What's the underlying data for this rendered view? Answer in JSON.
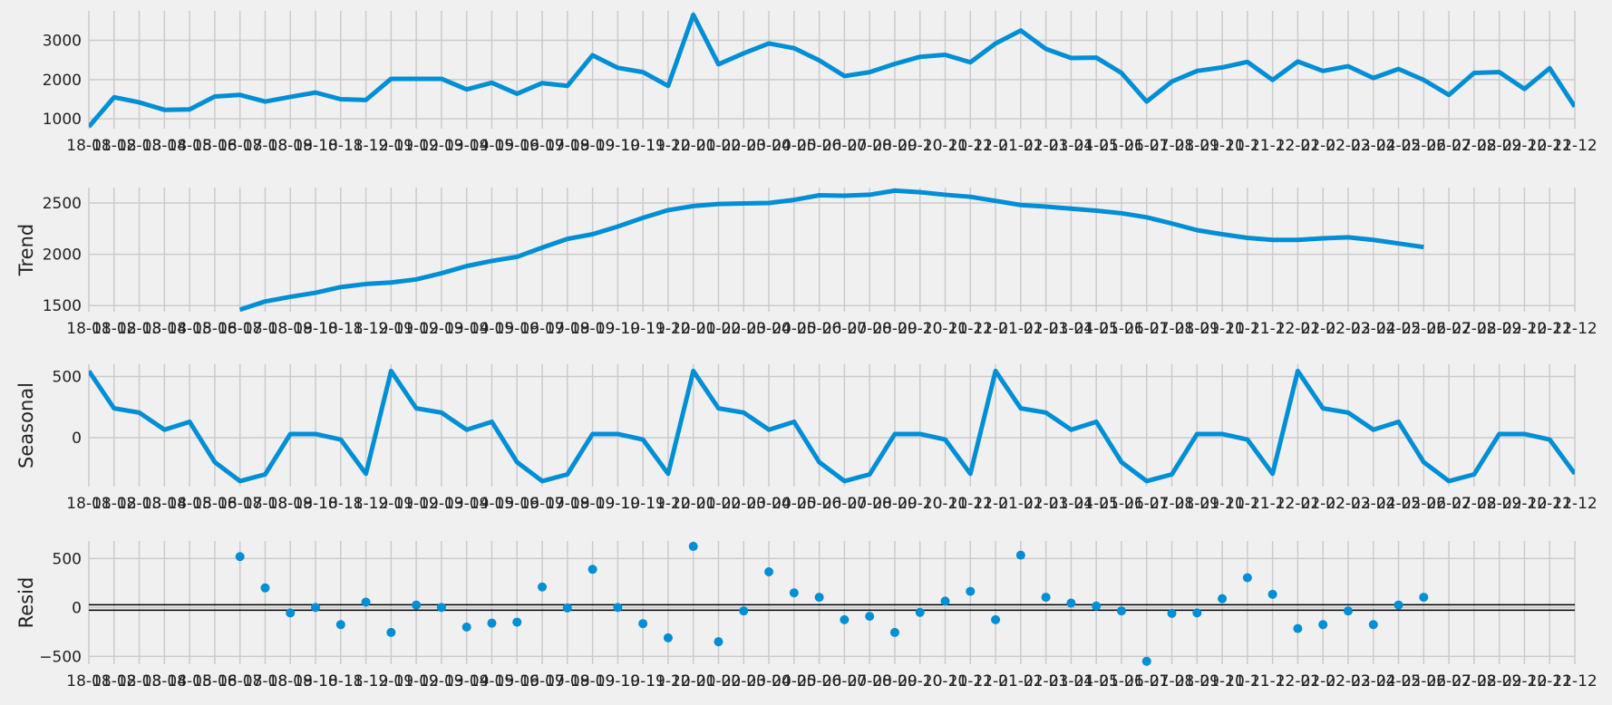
{
  "chart_data": [
    {
      "type": "line",
      "ylabel": "",
      "ylim": [
        750,
        3750
      ],
      "yticks": [
        1000,
        2000,
        3000
      ],
      "grid": true,
      "x_tick_labels": [
        "18-01",
        "18-02",
        "18-03",
        "18-04",
        "18-05",
        "18-06",
        "18-07",
        "18-08",
        "18-09",
        "18-10",
        "18-11",
        "18-12",
        "19-01",
        "19-02",
        "19-03",
        "19-04",
        "19-05",
        "19-06",
        "19-07",
        "19-08",
        "19-09",
        "19-10",
        "19-11",
        "19-12",
        "20-01",
        "20-02",
        "20-03",
        "20-04",
        "20-05",
        "20-06",
        "20-07",
        "20-08",
        "20-09",
        "20-10",
        "20-11",
        "20-12",
        "21-01",
        "21-02",
        "21-03",
        "21-04",
        "21-05",
        "21-06",
        "21-07",
        "21-08",
        "21-09",
        "21-10",
        "21-11",
        "21-12",
        "22-01",
        "22-02",
        "22-03",
        "22-04",
        "22-05",
        "22-06",
        "22-07",
        "22-08",
        "22-09",
        "22-10",
        "22-11",
        "22-12"
      ],
      "values": [
        800,
        1550,
        1420,
        1230,
        1240,
        1570,
        1610,
        1440,
        1560,
        1670,
        1500,
        1480,
        2020,
        2020,
        2020,
        1750,
        1920,
        1640,
        1910,
        1840,
        2620,
        2300,
        2190,
        1840,
        3650,
        2390,
        2670,
        2920,
        2800,
        2490,
        2090,
        2190,
        2400,
        2580,
        2630,
        2440,
        2920,
        3250,
        2780,
        2550,
        2560,
        2170,
        1440,
        1950,
        2220,
        2310,
        2450,
        1990,
        2460,
        2220,
        2340,
        2040,
        2270,
        1990,
        1610,
        2170,
        2190,
        1760,
        2290,
        1310
      ]
    },
    {
      "type": "line",
      "ylabel": "Trend",
      "ylim": [
        1440,
        2650
      ],
      "yticks": [
        1500,
        2000,
        2500
      ],
      "grid": true,
      "x_tick_labels": [
        "18-01",
        "18-02",
        "18-03",
        "18-04",
        "18-05",
        "18-06",
        "18-07",
        "18-08",
        "18-09",
        "18-10",
        "18-11",
        "18-12",
        "19-01",
        "19-02",
        "19-03",
        "19-04",
        "19-05",
        "19-06",
        "19-07",
        "19-08",
        "19-09",
        "19-10",
        "19-11",
        "19-12",
        "20-01",
        "20-02",
        "20-03",
        "20-04",
        "20-05",
        "20-06",
        "20-07",
        "20-08",
        "20-09",
        "20-10",
        "20-11",
        "20-12",
        "21-01",
        "21-02",
        "21-03",
        "21-04",
        "21-05",
        "21-06",
        "21-07",
        "21-08",
        "21-09",
        "21-10",
        "21-11",
        "21-12",
        "22-01",
        "22-02",
        "22-03",
        "22-04",
        "22-05",
        "22-06",
        "22-07",
        "22-08",
        "22-09",
        "22-10",
        "22-11",
        "22-12"
      ],
      "values": [
        null,
        null,
        null,
        null,
        null,
        null,
        1460,
        1540,
        1585,
        1625,
        1680,
        1710,
        1725,
        1755,
        1815,
        1885,
        1935,
        1975,
        2065,
        2150,
        2195,
        2270,
        2355,
        2430,
        2470,
        2490,
        2495,
        2500,
        2530,
        2575,
        2570,
        2580,
        2620,
        2605,
        2580,
        2560,
        2520,
        2480,
        2465,
        2445,
        2425,
        2400,
        2360,
        2300,
        2235,
        2195,
        2160,
        2140,
        2140,
        2155,
        2165,
        2140,
        2105,
        2070,
        null,
        null,
        null,
        null,
        null,
        null
      ]
    },
    {
      "type": "line",
      "ylabel": "Seasonal",
      "ylim": [
        -400,
        600
      ],
      "yticks": [
        0,
        500
      ],
      "grid": true,
      "x_tick_labels": [
        "18-01",
        "18-02",
        "18-03",
        "18-04",
        "18-05",
        "18-06",
        "18-07",
        "18-08",
        "18-09",
        "18-10",
        "18-11",
        "18-12",
        "19-01",
        "19-02",
        "19-03",
        "19-04",
        "19-05",
        "19-06",
        "19-07",
        "19-08",
        "19-09",
        "19-10",
        "19-11",
        "19-12",
        "20-01",
        "20-02",
        "20-03",
        "20-04",
        "20-05",
        "20-06",
        "20-07",
        "20-08",
        "20-09",
        "20-10",
        "20-11",
        "20-12",
        "21-01",
        "21-02",
        "21-03",
        "21-04",
        "21-05",
        "21-06",
        "21-07",
        "21-08",
        "21-09",
        "21-10",
        "21-11",
        "21-12",
        "22-01",
        "22-02",
        "22-03",
        "22-04",
        "22-05",
        "22-06",
        "22-07",
        "22-08",
        "22-09",
        "22-10",
        "22-11",
        "22-12"
      ],
      "values": [
        545,
        240,
        205,
        65,
        130,
        -200,
        -355,
        -300,
        30,
        30,
        -15,
        -295,
        545,
        240,
        205,
        65,
        130,
        -200,
        -355,
        -300,
        30,
        30,
        -15,
        -295,
        545,
        240,
        205,
        65,
        130,
        -200,
        -355,
        -300,
        30,
        30,
        -15,
        -295,
        545,
        240,
        205,
        65,
        130,
        -200,
        -355,
        -300,
        30,
        30,
        -15,
        -295,
        545,
        240,
        205,
        65,
        130,
        -200,
        -355,
        -300,
        30,
        30,
        -15,
        -295
      ]
    },
    {
      "type": "scatter",
      "ylabel": "Resid",
      "ylim": [
        -580,
        680
      ],
      "yticks": [
        -500,
        0,
        500
      ],
      "grid": true,
      "zero_line": true,
      "x_tick_labels": [
        "18-01",
        "18-02",
        "18-03",
        "18-04",
        "18-05",
        "18-06",
        "18-07",
        "18-08",
        "18-09",
        "18-10",
        "18-11",
        "18-12",
        "19-01",
        "19-02",
        "19-03",
        "19-04",
        "19-05",
        "19-06",
        "19-07",
        "19-08",
        "19-09",
        "19-10",
        "19-11",
        "19-12",
        "20-01",
        "20-02",
        "20-03",
        "20-04",
        "20-05",
        "20-06",
        "20-07",
        "20-08",
        "20-09",
        "20-10",
        "20-11",
        "20-12",
        "21-01",
        "21-02",
        "21-03",
        "21-04",
        "21-05",
        "21-06",
        "21-07",
        "21-08",
        "21-09",
        "21-10",
        "21-11",
        "21-12",
        "22-01",
        "22-02",
        "22-03",
        "22-04",
        "22-05",
        "22-06",
        "22-07",
        "22-08",
        "22-09",
        "22-10",
        "22-11",
        "22-12"
      ],
      "values": [
        null,
        null,
        null,
        null,
        null,
        null,
        520,
        200,
        -55,
        0,
        -175,
        55,
        -255,
        25,
        0,
        -200,
        -160,
        -150,
        210,
        -5,
        390,
        0,
        -165,
        -310,
        625,
        -350,
        -35,
        365,
        150,
        105,
        -125,
        -90,
        -255,
        -50,
        65,
        165,
        -125,
        535,
        105,
        45,
        15,
        -35,
        -550,
        -60,
        -55,
        90,
        305,
        135,
        -215,
        -175,
        -35,
        -175,
        25,
        105,
        null,
        null,
        null,
        null,
        null,
        null
      ]
    }
  ]
}
